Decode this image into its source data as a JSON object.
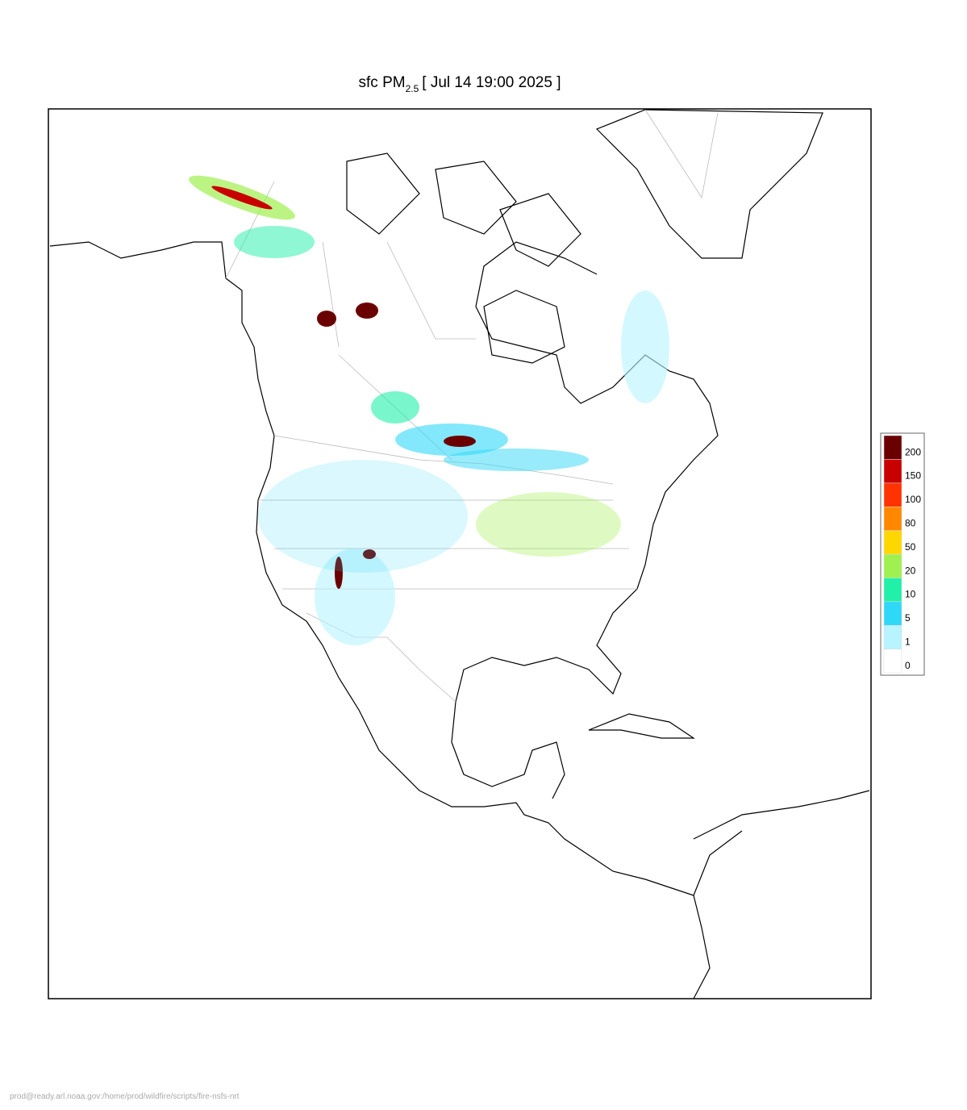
{
  "map": {
    "title": {
      "prefix": "sfc PM",
      "subscript": "2.5",
      "suffix": "[ Jul 14 19:00 2025 ]"
    },
    "legend": {
      "levels": [
        0,
        1,
        5,
        10,
        20,
        50,
        80,
        100,
        150,
        200
      ],
      "colors": [
        "#ffffff",
        "#b8f4ff",
        "#30d8f8",
        "#20f0a8",
        "#a0f050",
        "#ffd700",
        "#ff8800",
        "#ff3300",
        "#c80000",
        "#6b0000"
      ]
    },
    "footer": "prod@ready.arl.noaa.gov:/home/prod/wildfire/scripts/fire-nsfs-nrt"
  }
}
